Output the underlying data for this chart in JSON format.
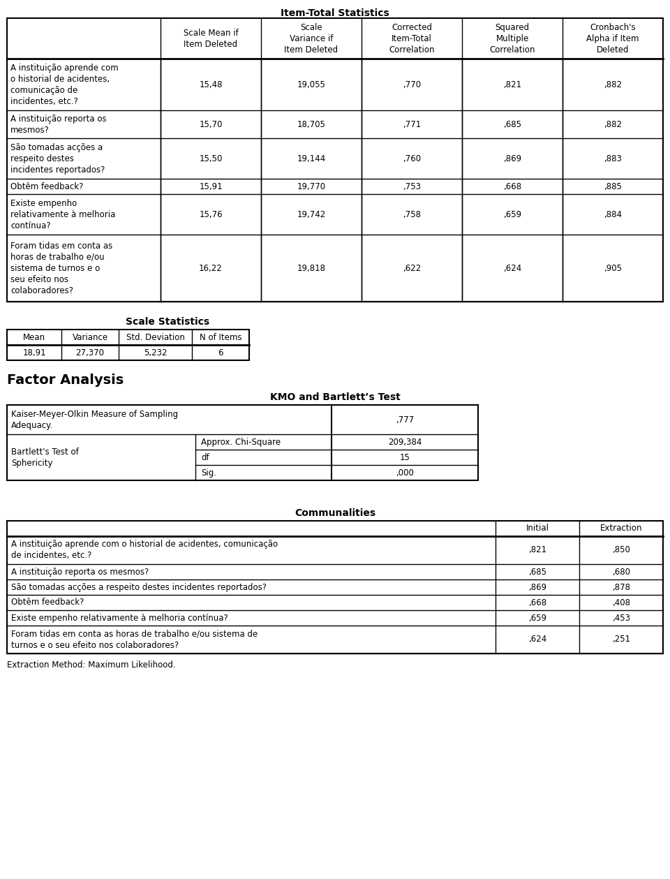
{
  "item_total_title": "Item-Total Statistics",
  "item_total_headers": [
    "",
    "Scale Mean if\nItem Deleted",
    "Scale\nVariance if\nItem Deleted",
    "Corrected\nItem-Total\nCorrelation",
    "Squared\nMultiple\nCorrelation",
    "Cronbach's\nAlpha if Item\nDeleted"
  ],
  "item_total_rows": [
    {
      "label": "A instituição aprende com\no historial de acidentes,\ncomunicação de\nincidentes, etc.?",
      "values": [
        "15,48",
        "19,055",
        ",770",
        ",821",
        ",882"
      ]
    },
    {
      "label": "A instituição reporta os\nmesmos?",
      "values": [
        "15,70",
        "18,705",
        ",771",
        ",685",
        ",882"
      ]
    },
    {
      "label": "São tomadas acções a\nrespeito destes\nincidentes reportados?",
      "values": [
        "15,50",
        "19,144",
        ",760",
        ",869",
        ",883"
      ]
    },
    {
      "label": "Obtêm feedback?",
      "values": [
        "15,91",
        "19,770",
        ",753",
        ",668",
        ",885"
      ]
    },
    {
      "label": "Existe empenho\nrelativamente à melhoria\ncontínua?",
      "values": [
        "15,76",
        "19,742",
        ",758",
        ",659",
        ",884"
      ]
    },
    {
      "label": "Foram tidas em conta as\nhoras de trabalho e/ou\nsistema de turnos e o\nseu efeito nos\ncolaboradores?",
      "values": [
        "16,22",
        "19,818",
        ",622",
        ",624",
        ",905"
      ]
    }
  ],
  "scale_stats_title": "Scale Statistics",
  "scale_stats_headers": [
    "Mean",
    "Variance",
    "Std. Deviation",
    "N of Items"
  ],
  "scale_stats_values": [
    "18,91",
    "27,370",
    "5,232",
    "6"
  ],
  "factor_analysis_title": "Factor Analysis",
  "kmo_title": "KMO and Bartlett’s Test",
  "kmo_rows": [
    {
      "col1": "Kaiser-Meyer-Olkin Measure of Sampling\nAdequacy.",
      "col2": "",
      "col3": ",777"
    },
    {
      "col1": "Bartlett's Test of\nSphericity",
      "col2": "Approx. Chi-Square",
      "col3": "209,384"
    },
    {
      "col1": "",
      "col2": "df",
      "col3": "15"
    },
    {
      "col1": "",
      "col2": "Sig.",
      "col3": ",000"
    }
  ],
  "communalities_title": "Communalities",
  "communalities_headers": [
    "",
    "Initial",
    "Extraction"
  ],
  "communalities_rows": [
    {
      "label": "A instituição aprende com o historial de acidentes, comunicação\nde incidentes, etc.?",
      "initial": ",821",
      "extraction": ",850"
    },
    {
      "label": "A instituição reporta os mesmos?",
      "initial": ",685",
      "extraction": ",680"
    },
    {
      "label": "São tomadas acções a respeito destes incidentes reportados?",
      "initial": ",869",
      "extraction": ",878"
    },
    {
      "label": "Obtêm feedback?",
      "initial": ",668",
      "extraction": ",408"
    },
    {
      "label": "Existe empenho relativamente à melhoria contínua?",
      "initial": ",659",
      "extraction": ",453"
    },
    {
      "label": "Foram tidas em conta as horas de trabalho e/ou sistema de\nturnos e o seu efeito nos colaboradores?",
      "initial": ",624",
      "extraction": ",251"
    }
  ],
  "extraction_note": "Extraction Method: Maximum Likelihood.",
  "font_size": 8.5,
  "header_font_size": 8.5,
  "title_font_size": 10,
  "bg_color": "#ffffff",
  "text_color": "#000000"
}
